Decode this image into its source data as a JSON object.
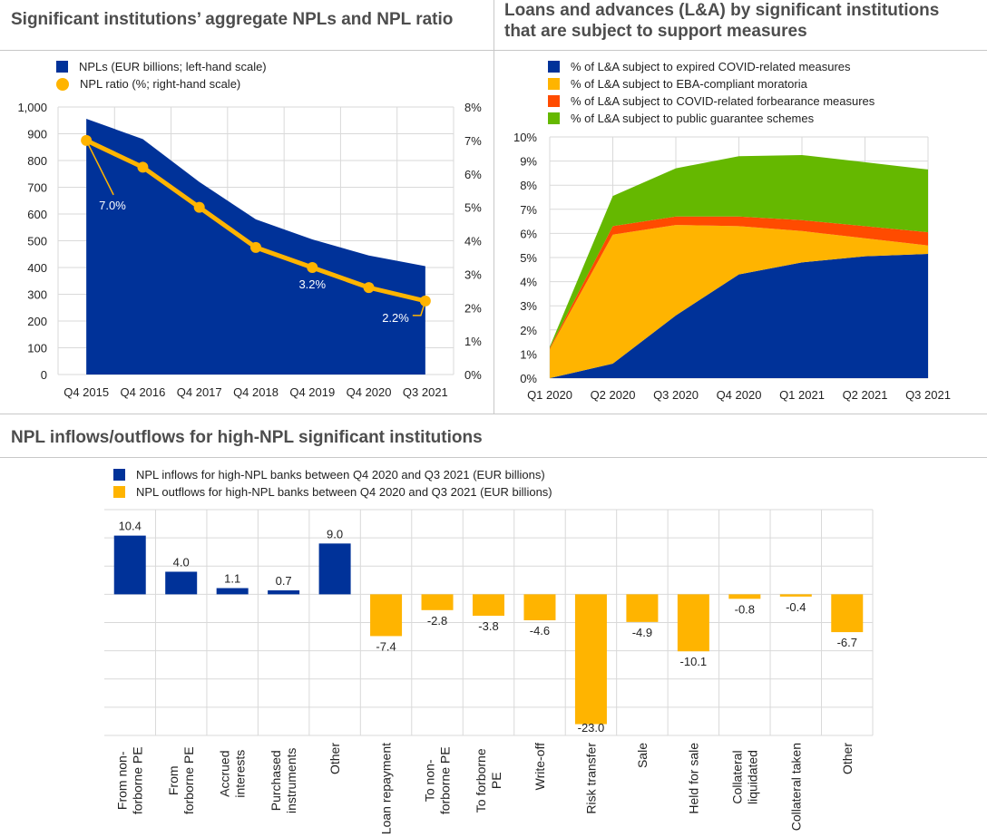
{
  "chart_data": [
    {
      "id": "npl",
      "type": "area",
      "title": "Significant institutions’ aggregate NPLs and NPL ratio",
      "categories": [
        "Q4 2015",
        "Q4 2016",
        "Q4 2017",
        "Q4 2018",
        "Q4 2019",
        "Q4 2020",
        "Q3 2021"
      ],
      "series": [
        {
          "name": "NPLs (EUR billions; left-hand scale)",
          "type": "area",
          "axis": "left",
          "color": "#003299",
          "values": [
            956,
            880,
            720,
            580,
            505,
            445,
            405
          ]
        },
        {
          "name": "NPL ratio (%; right-hand scale)",
          "type": "line",
          "axis": "right",
          "color": "#ffb400",
          "values": [
            7.0,
            6.2,
            5.0,
            3.8,
            3.2,
            2.6,
            2.2
          ]
        }
      ],
      "annotations": [
        {
          "series": 1,
          "index": 0,
          "text": "7.0%"
        },
        {
          "series": 1,
          "index": 4,
          "text": "3.2%"
        },
        {
          "series": 1,
          "index": 6,
          "text": "2.2%"
        }
      ],
      "ylim_left": [
        0,
        1000
      ],
      "yticks_left": [
        "0",
        "100",
        "200",
        "300",
        "400",
        "500",
        "600",
        "700",
        "800",
        "900",
        "1,000"
      ],
      "ylim_right": [
        0,
        8
      ],
      "yticks_right": [
        "0%",
        "1%",
        "2%",
        "3%",
        "4%",
        "5%",
        "6%",
        "7%",
        "8%"
      ],
      "grid": true,
      "legend": "top-left"
    },
    {
      "id": "la",
      "type": "area",
      "stacked": true,
      "title": "Loans and advances (L&A) by significant institutions that are subject to support measures",
      "title_lines": [
        "Loans and advances (L&A) by significant institutions",
        "that are subject to support measures"
      ],
      "categories": [
        "Q1 2020",
        "Q2 2020",
        "Q3 2020",
        "Q4 2020",
        "Q1 2021",
        "Q2 2021",
        "Q3 2021"
      ],
      "series": [
        {
          "name": "% of L&A subject to expired COVID-related measures",
          "color": "#003299",
          "values": [
            0.0,
            0.6,
            2.6,
            4.3,
            4.8,
            5.05,
            5.15
          ]
        },
        {
          "name": "% of L&A subject to EBA-compliant moratoria",
          "color": "#ffb400",
          "values": [
            1.2,
            5.35,
            3.75,
            2.0,
            1.3,
            0.75,
            0.35
          ]
        },
        {
          "name": "% of L&A subject to COVID-related forbearance measures",
          "color": "#ff4b00",
          "values": [
            0.05,
            0.35,
            0.35,
            0.4,
            0.45,
            0.5,
            0.55
          ]
        },
        {
          "name": "% of L&A subject to public guarantee schemes",
          "color": "#65b800",
          "values": [
            0.05,
            1.25,
            2.0,
            2.5,
            2.7,
            2.65,
            2.6
          ]
        }
      ],
      "ylim": [
        0,
        10
      ],
      "yticks": [
        "0%",
        "1%",
        "2%",
        "3%",
        "4%",
        "5%",
        "6%",
        "7%",
        "8%",
        "9%",
        "10%"
      ],
      "grid": true,
      "legend": "top"
    },
    {
      "id": "flows",
      "type": "bar",
      "title": "NPL inflows/outflows for high-NPL significant institutions",
      "categories": [
        "From non-forborne PE",
        "From forborne PE",
        "Accrued interests",
        "Purchased instruments",
        "Other",
        "Loan repayment",
        "To non-forborne PE",
        "To forborne PE",
        "Write-off",
        "Risk transfer",
        "Sale",
        "Held for sale",
        "Collateral liquidated",
        "Collateral taken",
        "Other"
      ],
      "category_lines": [
        [
          "From non-",
          "forborne PE"
        ],
        [
          "From",
          "forborne PE"
        ],
        [
          "Accrued",
          "interests"
        ],
        [
          "Purchased",
          "instruments"
        ],
        [
          "Other"
        ],
        [
          "Loan repayment"
        ],
        [
          "To non-",
          "forborne PE"
        ],
        [
          "To forborne",
          "PE"
        ],
        [
          "Write-off"
        ],
        [
          "Risk transfer"
        ],
        [
          "Sale"
        ],
        [
          "Held for sale"
        ],
        [
          "Collateral",
          "liquidated"
        ],
        [
          "Collateral taken"
        ],
        [
          "Other"
        ]
      ],
      "values": [
        10.4,
        4.0,
        1.1,
        0.7,
        9.0,
        -7.4,
        -2.8,
        -3.8,
        -4.6,
        -23.0,
        -4.9,
        -10.1,
        -0.8,
        -0.4,
        -6.7
      ],
      "labels": [
        "10.4",
        "4.0",
        "1.1",
        "0.7",
        "9.0",
        "-7.4",
        "-2.8",
        "-3.8",
        "-4.6",
        "-23.0",
        "-4.9",
        "-10.1",
        "-0.8",
        "-0.4",
        "-6.7"
      ],
      "series": [
        {
          "name": "NPL inflows for high-NPL banks between Q4 2020 and Q3 2021 (EUR billions)",
          "color": "#003299"
        },
        {
          "name": "NPL outflows for high-NPL banks between Q4 2020 and Q3 2021 (EUR billions)",
          "color": "#ffb400"
        }
      ],
      "ylim": [
        -25,
        15
      ],
      "ystep": 5,
      "grid": true,
      "legend": "top"
    }
  ]
}
